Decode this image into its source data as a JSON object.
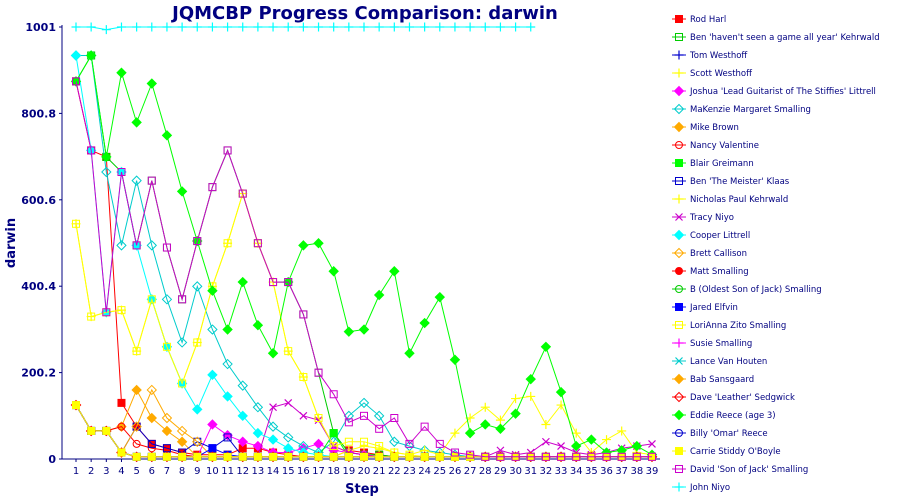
{
  "chart_data": {
    "type": "line",
    "title": "JQMCBP Progress Comparison: darwin",
    "xlabel": "Step",
    "ylabel": "darwin",
    "ylim": [
      0,
      1001
    ],
    "yticks": [
      "0",
      "200.2",
      "400.4",
      "600.6",
      "800.8",
      "1001"
    ],
    "x": [
      1,
      2,
      3,
      4,
      5,
      6,
      7,
      8,
      9,
      10,
      11,
      12,
      13,
      14,
      15,
      16,
      17,
      18,
      19,
      20,
      21,
      22,
      23,
      24,
      25,
      26,
      27,
      28,
      29,
      30,
      31,
      32,
      33,
      34,
      35,
      36,
      37,
      38,
      39
    ],
    "grid": false,
    "legend_position": "right",
    "series": [
      {
        "name": "Rod Harl",
        "color": "#ff0000",
        "marker": "square-filled",
        "values": [
          875,
          715,
          700,
          130,
          75,
          35,
          25,
          15,
          10,
          10,
          10,
          25,
          25,
          15,
          10,
          5,
          5,
          5,
          20,
          15,
          10,
          5,
          5,
          5,
          5,
          5,
          5,
          5,
          5,
          5,
          5,
          5,
          5,
          5,
          5,
          5,
          5,
          5,
          5
        ]
      },
      {
        "name": "Ben 'haven't seen a game all year' Kehrwald",
        "color": "#00cc00",
        "marker": "square-open",
        "values": [
          875,
          935,
          700,
          665,
          495,
          645,
          490,
          370,
          505,
          630,
          715,
          615,
          500,
          410,
          410,
          335,
          200,
          60,
          15,
          10,
          10,
          5,
          5,
          5,
          5,
          5,
          5,
          5,
          5,
          5,
          5,
          5,
          5,
          5,
          5,
          5,
          5,
          5,
          5
        ]
      },
      {
        "name": "Tom Westhoff",
        "color": "#0000cc",
        "marker": "plus",
        "values": [
          125,
          65,
          65,
          15,
          5,
          5,
          5,
          5,
          5,
          5,
          5,
          5,
          5,
          5,
          5,
          5,
          5,
          5,
          5,
          5,
          5,
          5,
          5,
          5,
          5,
          5,
          5,
          5,
          5,
          5,
          5,
          5,
          5,
          5,
          5,
          5,
          5,
          5,
          5
        ]
      },
      {
        "name": "Scott Westhoff",
        "color": "#ffff00",
        "marker": "plus",
        "values": [
          545,
          330,
          340,
          345,
          250,
          370,
          260,
          175,
          270,
          400,
          500,
          615,
          500,
          410,
          250,
          190,
          95,
          30,
          15,
          10,
          5,
          5,
          5,
          5,
          5,
          5,
          5,
          5,
          5,
          5,
          5,
          5,
          5,
          5,
          5,
          5,
          5,
          5,
          5
        ]
      },
      {
        "name": "Joshua 'Lead Guitarist of The Stiffies' Littrell",
        "color": "#ff00ff",
        "marker": "diamond-filled",
        "values": [
          125,
          65,
          65,
          15,
          5,
          5,
          5,
          5,
          5,
          80,
          55,
          40,
          30,
          15,
          15,
          25,
          35,
          20,
          15,
          10,
          5,
          5,
          5,
          5,
          5,
          5,
          5,
          5,
          5,
          5,
          5,
          5,
          5,
          5,
          5,
          5,
          5,
          5,
          5
        ]
      },
      {
        "name": "MaKenzie Margaret Smalling",
        "color": "#00cccc",
        "marker": "diamond-open",
        "values": [
          935,
          935,
          665,
          495,
          645,
          495,
          370,
          270,
          400,
          300,
          220,
          170,
          120,
          75,
          50,
          30,
          15,
          40,
          100,
          130,
          100,
          40,
          30,
          20,
          15,
          10,
          5,
          5,
          5,
          5,
          5,
          5,
          5,
          5,
          5,
          5,
          5,
          5,
          5
        ]
      },
      {
        "name": "Mike Brown",
        "color": "#ffaa00",
        "marker": "diamond-filled",
        "values": [
          125,
          65,
          65,
          75,
          160,
          95,
          65,
          40,
          5,
          5,
          5,
          5,
          5,
          5,
          5,
          5,
          5,
          5,
          5,
          5,
          5,
          5,
          5,
          5,
          5,
          5,
          5,
          5,
          5,
          5,
          5,
          5,
          5,
          5,
          5,
          5,
          5,
          5,
          5
        ]
      },
      {
        "name": "Nancy Valentine",
        "color": "#ff0000",
        "marker": "circle-open",
        "values": [
          125,
          65,
          65,
          75,
          35,
          25,
          20,
          10,
          5,
          5,
          5,
          5,
          5,
          5,
          5,
          5,
          5,
          5,
          5,
          5,
          5,
          5,
          5,
          5,
          5,
          5,
          5,
          5,
          5,
          5,
          5,
          5,
          5,
          5,
          5,
          5,
          5,
          5,
          5
        ]
      },
      {
        "name": "Blair Greimann",
        "color": "#00ff00",
        "marker": "square-filled",
        "values": [
          125,
          65,
          65,
          15,
          5,
          5,
          5,
          5,
          5,
          5,
          5,
          5,
          5,
          5,
          5,
          5,
          5,
          60,
          5,
          5,
          5,
          5,
          5,
          5,
          5,
          5,
          5,
          5,
          5,
          5,
          5,
          5,
          5,
          5,
          5,
          5,
          5,
          5,
          5
        ]
      },
      {
        "name": "Ben 'The Meister' Klaas",
        "color": "#0000cc",
        "marker": "square-open",
        "values": [
          125,
          65,
          65,
          15,
          75,
          35,
          25,
          15,
          40,
          25,
          50,
          5,
          5,
          5,
          5,
          5,
          5,
          5,
          5,
          5,
          5,
          5,
          5,
          5,
          5,
          5,
          5,
          5,
          5,
          5,
          5,
          5,
          5,
          5,
          5,
          5,
          5,
          5,
          5
        ]
      },
      {
        "name": "Nicholas Paul Kehrwald",
        "color": "#ffff00",
        "marker": "plus",
        "values": [
          125,
          65,
          65,
          15,
          5,
          5,
          5,
          5,
          5,
          5,
          5,
          5,
          5,
          5,
          5,
          5,
          5,
          5,
          20,
          30,
          25,
          15,
          10,
          20,
          10,
          60,
          95,
          120,
          90,
          140,
          145,
          80,
          125,
          60,
          15,
          45,
          65,
          15,
          10
        ]
      },
      {
        "name": "Tracy Niyo",
        "color": "#cc00cc",
        "marker": "cross",
        "values": [
          125,
          65,
          65,
          15,
          5,
          5,
          5,
          5,
          5,
          5,
          5,
          5,
          5,
          120,
          130,
          100,
          90,
          30,
          15,
          10,
          5,
          5,
          5,
          5,
          5,
          5,
          5,
          5,
          20,
          10,
          15,
          40,
          30,
          15,
          10,
          15,
          25,
          30,
          35
        ]
      },
      {
        "name": "Cooper Littrell",
        "color": "#00ffff",
        "marker": "diamond-filled",
        "values": [
          935,
          715,
          340,
          665,
          495,
          370,
          260,
          175,
          115,
          195,
          145,
          100,
          60,
          45,
          25,
          15,
          10,
          5,
          5,
          5,
          5,
          5,
          5,
          5,
          5,
          5,
          5,
          5,
          5,
          5,
          5,
          5,
          5,
          5,
          5,
          5,
          5,
          5,
          5
        ]
      },
      {
        "name": "Brett Callison",
        "color": "#ffaa00",
        "marker": "diamond-open",
        "values": [
          125,
          65,
          65,
          15,
          75,
          160,
          95,
          65,
          40,
          5,
          5,
          5,
          5,
          5,
          5,
          5,
          5,
          5,
          5,
          5,
          5,
          5,
          5,
          5,
          5,
          5,
          5,
          5,
          5,
          5,
          5,
          5,
          5,
          5,
          5,
          5,
          5,
          5,
          5
        ]
      },
      {
        "name": "Matt Smalling",
        "color": "#ff0000",
        "marker": "circle-filled",
        "values": [
          125,
          65,
          65,
          15,
          5,
          5,
          5,
          5,
          5,
          5,
          5,
          5,
          5,
          5,
          5,
          5,
          5,
          5,
          5,
          5,
          5,
          5,
          5,
          5,
          5,
          5,
          5,
          5,
          5,
          5,
          5,
          5,
          5,
          5,
          5,
          5,
          5,
          5,
          5
        ]
      },
      {
        "name": "B (Oldest Son of Jack) Smalling",
        "color": "#00cc00",
        "marker": "circle-open",
        "values": [
          125,
          65,
          65,
          15,
          5,
          5,
          5,
          5,
          5,
          5,
          5,
          5,
          5,
          5,
          5,
          5,
          5,
          5,
          5,
          5,
          5,
          5,
          5,
          5,
          5,
          5,
          5,
          5,
          5,
          5,
          5,
          5,
          5,
          5,
          5,
          5,
          5,
          5,
          5
        ]
      },
      {
        "name": "Jared Elfvin",
        "color": "#0000ff",
        "marker": "square-filled",
        "values": [
          125,
          65,
          65,
          15,
          5,
          5,
          5,
          5,
          5,
          25,
          10,
          5,
          5,
          5,
          5,
          5,
          5,
          5,
          5,
          5,
          5,
          5,
          5,
          5,
          5,
          5,
          5,
          5,
          5,
          5,
          5,
          5,
          5,
          5,
          5,
          5,
          5,
          5,
          5
        ]
      },
      {
        "name": "LoriAnna Zito Smalling",
        "color": "#ffff00",
        "marker": "square-open",
        "values": [
          545,
          330,
          340,
          345,
          250,
          370,
          260,
          175,
          270,
          400,
          500,
          615,
          500,
          410,
          250,
          190,
          95,
          30,
          40,
          40,
          30,
          15,
          10,
          5,
          5,
          5,
          5,
          5,
          5,
          5,
          5,
          5,
          5,
          5,
          5,
          5,
          5,
          5,
          5
        ]
      },
      {
        "name": "Susie Smalling",
        "color": "#ff00ff",
        "marker": "plus",
        "values": [
          125,
          65,
          65,
          15,
          5,
          5,
          5,
          5,
          5,
          5,
          5,
          5,
          5,
          5,
          5,
          5,
          5,
          5,
          5,
          5,
          5,
          5,
          5,
          5,
          5,
          5,
          5,
          5,
          5,
          5,
          5,
          5,
          5,
          5,
          5,
          5,
          5,
          5,
          5
        ]
      },
      {
        "name": "Lance Van Houten",
        "color": "#00cccc",
        "marker": "cross",
        "values": [
          125,
          65,
          65,
          15,
          5,
          5,
          5,
          5,
          5,
          5,
          5,
          5,
          5,
          5,
          5,
          5,
          5,
          5,
          5,
          5,
          5,
          5,
          5,
          5,
          5,
          5,
          5,
          5,
          5,
          5,
          5,
          5,
          5,
          5,
          5,
          5,
          5,
          5,
          5
        ]
      },
      {
        "name": "Bab Sansgaard",
        "color": "#ffaa00",
        "marker": "diamond-filled",
        "values": [
          125,
          65,
          65,
          15,
          5,
          5,
          5,
          5,
          5,
          5,
          5,
          5,
          5,
          5,
          5,
          5,
          5,
          5,
          5,
          5,
          5,
          5,
          5,
          5,
          5,
          5,
          5,
          5,
          5,
          5,
          5,
          5,
          5,
          5,
          5,
          5,
          5,
          5,
          5
        ]
      },
      {
        "name": "Dave 'Leather' Sedgwick",
        "color": "#ff0000",
        "marker": "diamond-open",
        "values": [
          125,
          65,
          65,
          15,
          5,
          5,
          5,
          5,
          5,
          5,
          5,
          5,
          5,
          5,
          5,
          5,
          5,
          5,
          5,
          5,
          5,
          5,
          5,
          5,
          5,
          5,
          5,
          5,
          5,
          5,
          5,
          5,
          5,
          5,
          5,
          5,
          5,
          5,
          5
        ]
      },
      {
        "name": "Eddie Reece (age 3)",
        "color": "#00ff00",
        "marker": "diamond-filled",
        "values": [
          875,
          935,
          700,
          895,
          780,
          870,
          750,
          620,
          505,
          390,
          300,
          410,
          310,
          245,
          410,
          495,
          500,
          435,
          295,
          300,
          380,
          435,
          245,
          315,
          375,
          230,
          60,
          80,
          70,
          105,
          185,
          260,
          155,
          30,
          45,
          15,
          20,
          30,
          10
        ]
      },
      {
        "name": "Billy 'Omar' Reece",
        "color": "#0000cc",
        "marker": "circle-open",
        "values": [
          125,
          65,
          65,
          15,
          5,
          5,
          5,
          5,
          5,
          5,
          5,
          5,
          5,
          5,
          5,
          5,
          5,
          5,
          5,
          5,
          5,
          5,
          5,
          5,
          5,
          5,
          5,
          5,
          5,
          5,
          5,
          5,
          5,
          5,
          5,
          5,
          5,
          5,
          5
        ]
      },
      {
        "name": "Carrie Stiddy O'Boyle",
        "color": "#ffff00",
        "marker": "square-filled",
        "values": [
          125,
          65,
          65,
          15,
          5,
          5,
          5,
          5,
          5,
          5,
          5,
          5,
          5,
          5,
          5,
          5,
          5,
          5,
          5,
          5,
          5,
          5,
          5,
          5,
          5,
          5,
          5,
          5,
          5,
          5,
          5,
          5,
          5,
          5,
          5,
          5,
          5,
          5,
          5
        ]
      },
      {
        "name": "David 'Son of Jack' Smalling",
        "color": "#cc00cc",
        "marker": "square-open",
        "values": [
          875,
          715,
          340,
          665,
          495,
          645,
          490,
          370,
          505,
          630,
          715,
          615,
          500,
          410,
          410,
          335,
          200,
          150,
          85,
          100,
          70,
          95,
          35,
          75,
          35,
          15,
          10,
          5,
          5,
          5,
          5,
          5,
          5,
          5,
          5,
          5,
          5,
          5,
          5
        ]
      },
      {
        "name": "John Niyo",
        "color": "#00ffff",
        "marker": "plus",
        "values": [
          1001,
          1001,
          995,
          1001,
          1001,
          1001,
          1001,
          1001,
          1001,
          1001,
          1001,
          1001,
          1001,
          1001,
          1001,
          1001,
          1001,
          1001,
          1001,
          1001,
          1001,
          1001,
          1001,
          1001,
          1001,
          1001,
          1001,
          1001,
          1001,
          1001,
          1001,
          null,
          null,
          null,
          null,
          null,
          null,
          null,
          null
        ]
      }
    ]
  }
}
